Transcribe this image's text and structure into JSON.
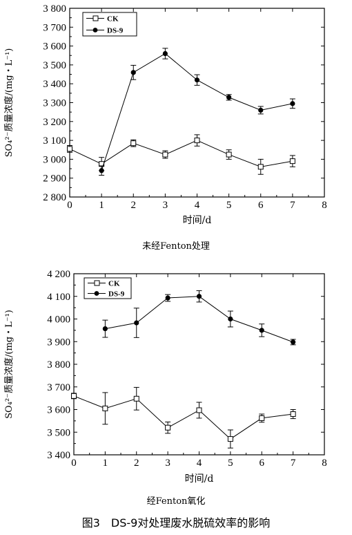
{
  "figure_title": "图3　DS-9对处理废水脱硫效率的影响",
  "chart_data": [
    {
      "type": "line",
      "caption": "未经Fenton处理",
      "xlabel": "时间/d",
      "ylabel": "SO₄²⁻质量浓度/(mg・L⁻¹)",
      "xlim": [
        0,
        8
      ],
      "ylim": [
        2800,
        3800
      ],
      "x_ticks": [
        "0",
        "1",
        "2",
        "3",
        "4",
        "5",
        "6",
        "7",
        "8"
      ],
      "y_ticks": [
        "2 800",
        "2 900",
        "3 000",
        "3 100",
        "3 200",
        "3 300",
        "3 400",
        "3 500",
        "3 600",
        "3 700",
        "3 800"
      ],
      "legend_position": "top-left",
      "series": [
        {
          "name": "CK",
          "marker": "open-square",
          "x": [
            0,
            1,
            2,
            3,
            4,
            5,
            6,
            7
          ],
          "values": [
            3055,
            2975,
            3085,
            3025,
            3100,
            3025,
            2960,
            2990
          ],
          "error": [
            18,
            35,
            18,
            20,
            30,
            25,
            40,
            30
          ]
        },
        {
          "name": "DS-9",
          "marker": "filled-circle",
          "x": [
            1,
            2,
            3,
            4,
            5,
            6,
            7
          ],
          "values": [
            2940,
            3460,
            3560,
            3420,
            3328,
            3260,
            3295
          ],
          "error": [
            25,
            38,
            28,
            28,
            15,
            20,
            25
          ]
        }
      ]
    },
    {
      "type": "line",
      "caption": "经Fenton氧化",
      "xlabel": "时间/d",
      "ylabel": "SO₄²⁻质量浓度/(mg・L⁻¹)",
      "xlim": [
        0,
        8
      ],
      "ylim": [
        3400,
        4200
      ],
      "x_ticks": [
        "0",
        "1",
        "2",
        "3",
        "4",
        "5",
        "6",
        "7",
        "8"
      ],
      "y_ticks": [
        "3 400",
        "3 500",
        "3 600",
        "3 700",
        "3 800",
        "3 900",
        "4 000",
        "4 100",
        "4 200"
      ],
      "legend_position": "top-left",
      "series": [
        {
          "name": "CK",
          "marker": "open-square",
          "x": [
            0,
            1,
            2,
            3,
            4,
            5,
            6,
            7
          ],
          "values": [
            3660,
            3605,
            3648,
            3520,
            3597,
            3470,
            3562,
            3580
          ],
          "error": [
            12,
            70,
            50,
            25,
            35,
            40,
            18,
            20
          ]
        },
        {
          "name": "DS-9",
          "marker": "filled-circle",
          "x": [
            1,
            2,
            3,
            4,
            5,
            6,
            7
          ],
          "values": [
            3957,
            3983,
            4093,
            4100,
            4000,
            3950,
            3898
          ],
          "error": [
            38,
            65,
            15,
            25,
            35,
            28,
            12
          ]
        }
      ]
    }
  ]
}
